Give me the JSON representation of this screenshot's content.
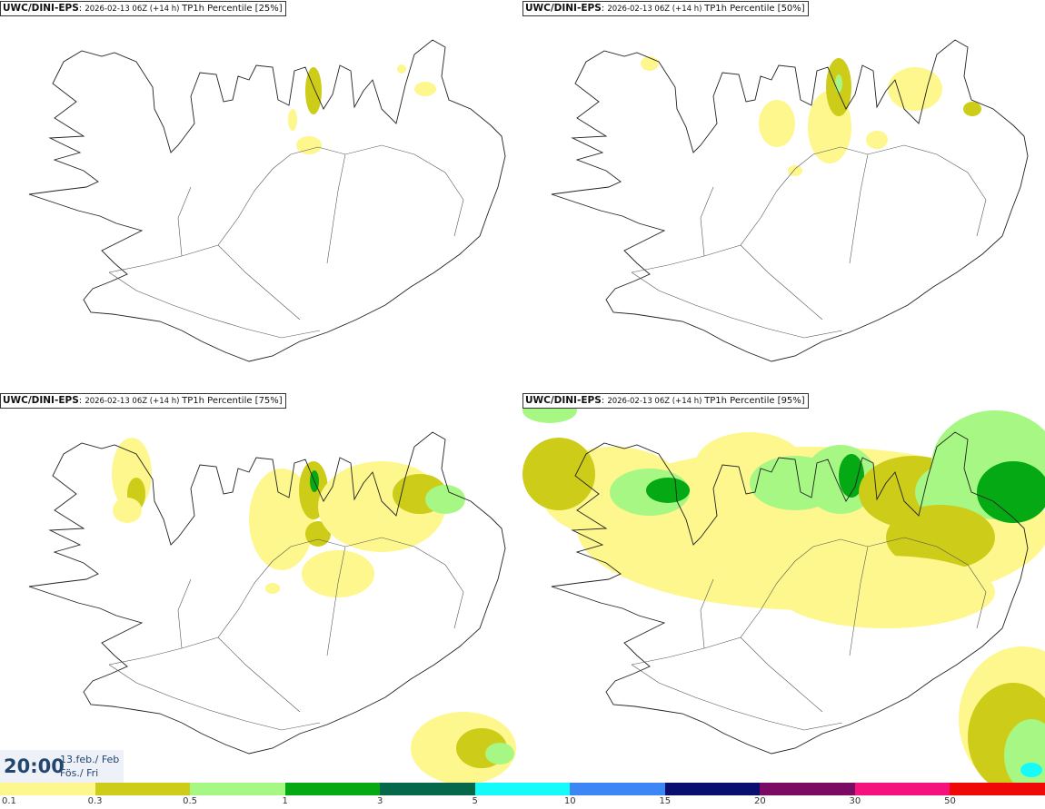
{
  "panels": [
    {
      "source": "UWC/DINI-EPS",
      "run": "2026-02-13 06Z (+14 h)",
      "field": "TP1h Percentile [25%]",
      "percentile": 25
    },
    {
      "source": "UWC/DINI-EPS",
      "run": "2026-02-13 06Z (+14 h)",
      "field": "TP1h Percentile [50%]",
      "percentile": 50
    },
    {
      "source": "UWC/DINI-EPS",
      "run": "2026-02-13 06Z (+14 h)",
      "field": "TP1h Percentile [75%]",
      "percentile": 75
    },
    {
      "source": "UWC/DINI-EPS",
      "run": "2026-02-13 06Z (+14 h)",
      "field": "TP1h Percentile [95%]",
      "percentile": 95
    }
  ],
  "valid_time": {
    "time": "20:00",
    "date_line": "13.feb./ Feb",
    "day_line": "Fös./ Fri"
  },
  "colorbar": {
    "labels": [
      "0.1",
      "0.3",
      "0.5",
      "1",
      "3",
      "5",
      "10",
      "15",
      "20",
      "30",
      "50"
    ],
    "colors": [
      "#fdf78d",
      "#cccc19",
      "#a7f784",
      "#05a913",
      "#05684b",
      "#16fafa",
      "#3c87f5",
      "#0a0e6f",
      "#7a0a63",
      "#f5127c",
      "#f00808"
    ]
  }
}
